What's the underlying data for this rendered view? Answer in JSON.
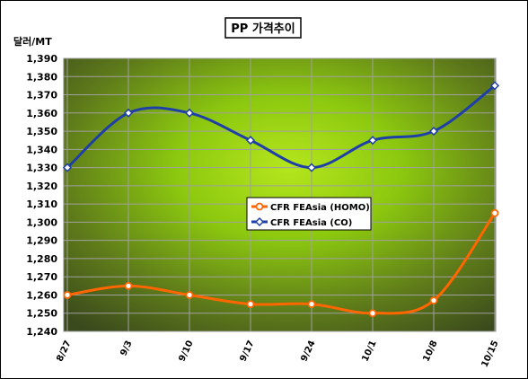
{
  "chart_data": {
    "type": "line",
    "title": "PP 가격추이",
    "ylabel": "달러/MT",
    "xlabel": "",
    "categories": [
      "8/27",
      "9/3",
      "9/10",
      "9/17",
      "9/24",
      "10/1",
      "10/8",
      "10/15"
    ],
    "ylim": [
      1240,
      1390
    ],
    "ytick_step": 10,
    "yticks": [
      "1,240",
      "1,250",
      "1,260",
      "1,270",
      "1,280",
      "1,290",
      "1,300",
      "1,310",
      "1,320",
      "1,330",
      "1,340",
      "1,350",
      "1,360",
      "1,370",
      "1,380",
      "1,390"
    ],
    "grid": true,
    "legend_position": "center-right",
    "series": [
      {
        "name": "CFR FEAsia (HOMO)",
        "color": "#ff6600",
        "values": [
          1260,
          1265,
          1260,
          1255,
          1255,
          1250,
          1257,
          1305
        ]
      },
      {
        "name": "CFR FEAsia (CO)",
        "color": "#1f3fa8",
        "values": [
          1330,
          1360,
          1360,
          1345,
          1330,
          1345,
          1350,
          1375
        ]
      }
    ]
  }
}
